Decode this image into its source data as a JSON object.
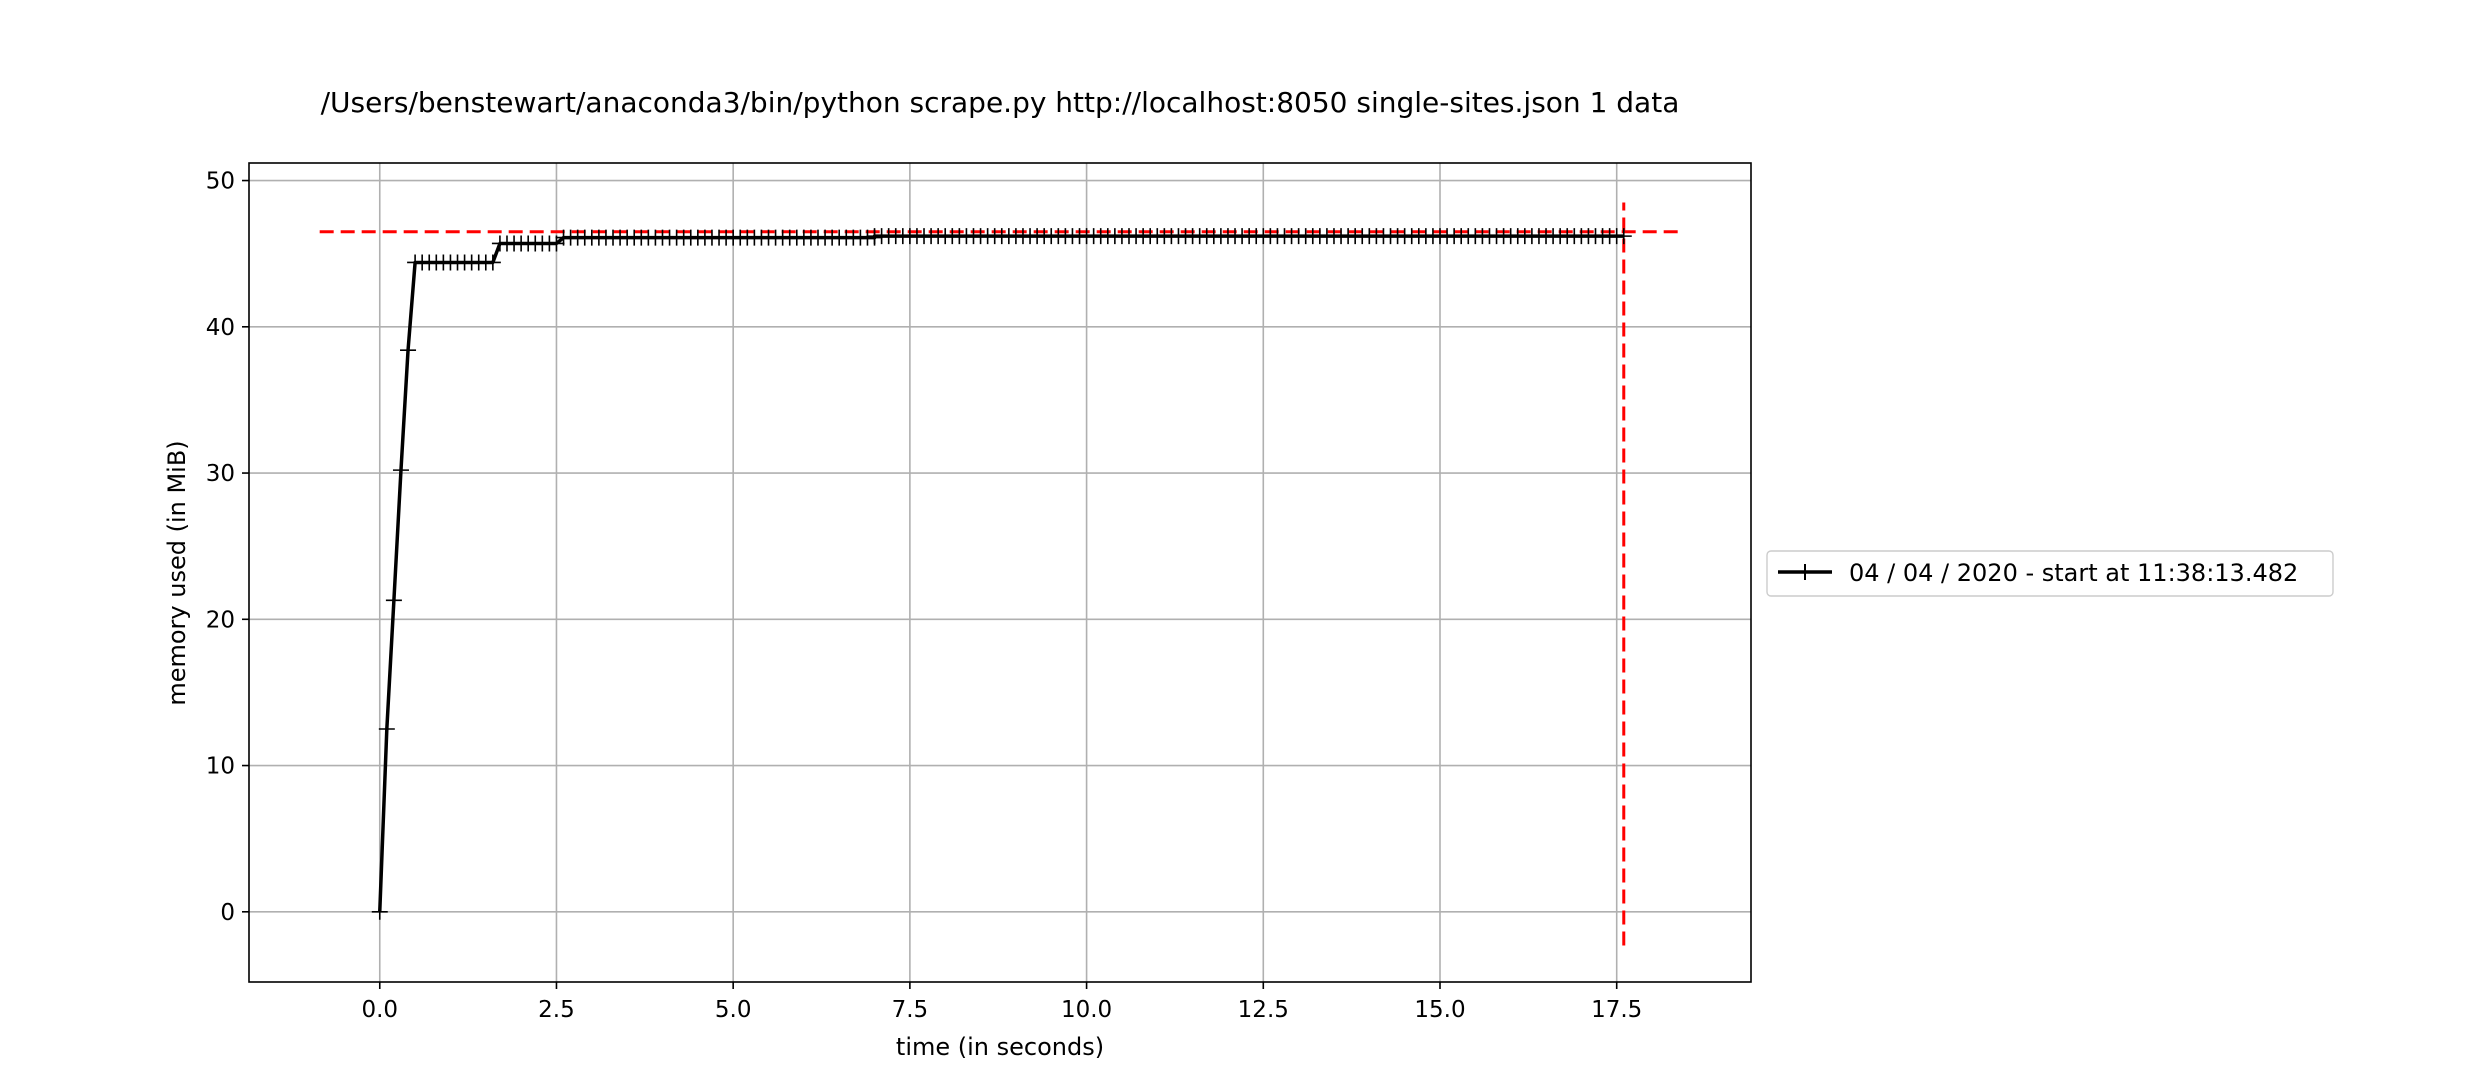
{
  "chart_data": {
    "type": "line",
    "title": "/Users/benstewart/anaconda3/bin/python scrape.py http://localhost:8050 single-sites.json 1 data",
    "xlabel": "time (in seconds)",
    "ylabel": "memory used (in MiB)",
    "xlim": [
      -1.85,
      19.4
    ],
    "ylim": [
      -4.8,
      51.2
    ],
    "xticks": [
      0.0,
      2.5,
      5.0,
      7.5,
      10.0,
      12.5,
      15.0,
      17.5
    ],
    "xtick_labels": [
      "0.0",
      "2.5",
      "5.0",
      "7.5",
      "10.0",
      "12.5",
      "15.0",
      "17.5"
    ],
    "yticks": [
      0,
      10,
      20,
      30,
      40,
      50
    ],
    "ytick_labels": [
      "0",
      "10",
      "20",
      "30",
      "40",
      "50"
    ],
    "grid": true,
    "series": [
      {
        "name": "04 / 04 / 2020 - start at 11:38:13.482",
        "color": "#000000",
        "marker": "plus",
        "segments": [
          {
            "x": [
              0.0,
              0.1,
              0.2,
              0.3,
              0.4,
              0.5
            ],
            "y": [
              0.0,
              12.5,
              21.3,
              30.2,
              38.4,
              44.4
            ]
          },
          {
            "x_start": 0.5,
            "x_end": 1.6,
            "step": 0.1,
            "y": 44.4
          },
          {
            "x_start": 1.6,
            "x_end": 1.7,
            "step": 0.1,
            "y_from": 44.4,
            "y_to": 45.7
          },
          {
            "x_start": 1.7,
            "x_end": 2.5,
            "step": 0.1,
            "y": 45.7
          },
          {
            "x_start": 2.5,
            "x_end": 2.6,
            "step": 0.1,
            "y_from": 45.7,
            "y_to": 46.1
          },
          {
            "x_start": 2.6,
            "x_end": 7.0,
            "step": 0.1,
            "y": 46.1
          },
          {
            "x_start": 7.0,
            "x_end": 17.6,
            "step": 0.1,
            "y": 46.2
          }
        ]
      }
    ],
    "reference_lines": [
      {
        "orientation": "horizontal",
        "y": 46.5,
        "x_from": -0.85,
        "x_to": 18.4,
        "color": "#ff0000",
        "style": "dashed"
      },
      {
        "orientation": "vertical",
        "x": 17.6,
        "y_from": -2.3,
        "y_to": 48.5,
        "color": "#ff0000",
        "style": "dashed"
      }
    ],
    "legend": {
      "position": "right-outside",
      "entries": [
        "04 / 04 / 2020 - start at 11:38:13.482"
      ]
    }
  }
}
